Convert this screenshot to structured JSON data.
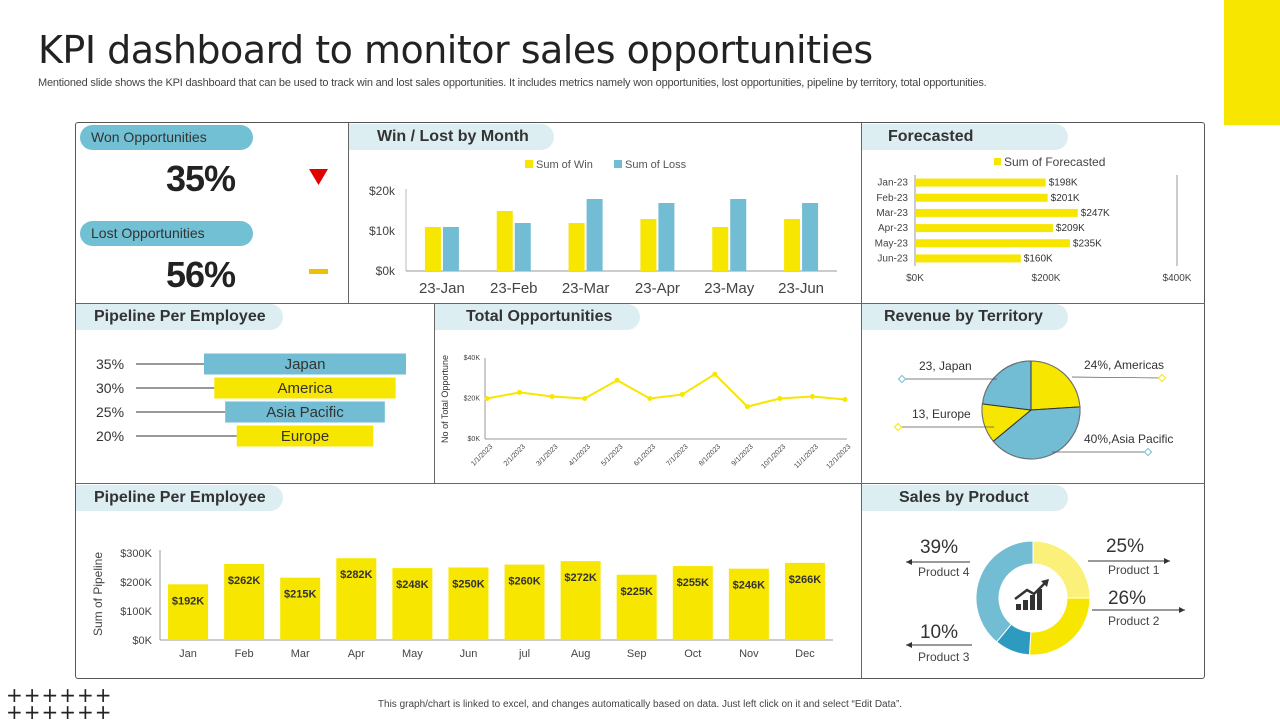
{
  "title": "KPI dashboard to monitor sales opportunities",
  "subtitle": "Mentioned slide shows the KPI dashboard that can be used to track win and lost sales opportunities. It includes metrics namely won opportunities, lost opportunities, pipeline by territory,  total opportunities.",
  "footer": "This graph/chart is linked to excel, and changes automatically based on data. Just left click on it and select “Edit Data”.",
  "decor": {
    "plus_row": "++++++"
  },
  "colors": {
    "yellow": "#f7e600",
    "blue": "#72bcd4",
    "dark_blue": "#2d9bbf",
    "light_yellow": "#fbf07a",
    "tab_bg": "#ddeef3",
    "accent_corner": "#f7e600"
  },
  "won": {
    "label": "Won Opportunities",
    "value": "35%",
    "indicator": "down-triangle",
    "indicator_color": "#e00000"
  },
  "lost": {
    "label": "Lost Opportunities",
    "value": "56%",
    "indicator": "dash",
    "indicator_color": "#f0c000"
  },
  "panels": {
    "win_lost": "Win / Lost by Month",
    "forecasted": "Forecasted",
    "pipeline_emp": "Pipeline Per Employee",
    "total_opp": "Total Opportunities",
    "revenue_territory": "Revenue by Territory",
    "pipeline_emp2": "Pipeline Per Employee",
    "sales_product": "Sales by Product"
  },
  "chart_data": [
    {
      "id": "win_lost",
      "type": "bar",
      "categories": [
        "23-Jan",
        "23-Feb",
        "23-Mar",
        "23-Apr",
        "23-May",
        "23-Jun"
      ],
      "series": [
        {
          "name": "Sum of Win",
          "values": [
            11,
            15,
            12,
            13,
            11,
            13
          ]
        },
        {
          "name": "Sum of Loss",
          "values": [
            11,
            12,
            18,
            17,
            18,
            17
          ]
        }
      ],
      "yticks": [
        "$0k",
        "$10k",
        "$20k"
      ],
      "ylim": [
        0,
        20
      ]
    },
    {
      "id": "forecasted",
      "type": "bar",
      "orientation": "horizontal",
      "legend": "Sum of Forecasted",
      "categories": [
        "Jan-23",
        "Feb-23",
        "Mar-23",
        "Apr-23",
        "May-23",
        "Jun-23"
      ],
      "values": [
        198,
        201,
        247,
        209,
        235,
        160
      ],
      "labels": [
        "$198K",
        "$201K",
        "$247K",
        "$209K",
        "$235K",
        "$160K"
      ],
      "xticks": [
        "$0K",
        "$200K",
        "$400K"
      ],
      "xlim": [
        0,
        400
      ]
    },
    {
      "id": "pipeline_funnel",
      "type": "bar",
      "orientation": "horizontal",
      "categories": [
        "Japan",
        "America",
        "Asia Pacific",
        "Europe"
      ],
      "percent_labels": [
        "35%",
        "30%",
        "25%",
        "20%"
      ],
      "values": [
        35,
        30,
        25,
        20
      ]
    },
    {
      "id": "total_opp",
      "type": "line",
      "ylabel": "No of Total Opportune",
      "x": [
        "1/1/2023",
        "2/1/2023",
        "3/1/2023",
        "4/1/2023",
        "5/1/2023",
        "6/1/2023",
        "7/1/2023",
        "8/1/2023",
        "9/1/2023",
        "10/1/2023",
        "11/1/2023",
        "12/1/2023"
      ],
      "values": [
        20,
        23,
        21,
        20,
        29,
        20,
        22,
        32,
        16,
        20,
        21,
        19.5
      ],
      "yticks": [
        "$0K",
        "$20K",
        "$40K"
      ],
      "ylim": [
        0,
        40
      ]
    },
    {
      "id": "revenue_territory",
      "type": "pie",
      "slices": [
        {
          "label": "24%, Americas",
          "value": 24,
          "color": "#f7e600"
        },
        {
          "label": "40%,Asia Pacific",
          "value": 40,
          "color": "#72bcd4"
        },
        {
          "label": "13, Europe",
          "value": 13,
          "color": "#f7e600"
        },
        {
          "label": "23, Japan",
          "value": 23,
          "color": "#72bcd4"
        }
      ]
    },
    {
      "id": "pipeline_monthly",
      "type": "bar",
      "ylabel": "Sum of Pipeline",
      "categories": [
        "Jan",
        "Feb",
        "Mar",
        "Apr",
        "May",
        "Jun",
        "jul",
        "Aug",
        "Sep",
        "Oct",
        "Nov",
        "Dec"
      ],
      "values": [
        192,
        262,
        215,
        282,
        248,
        250,
        260,
        272,
        225,
        255,
        246,
        266
      ],
      "labels": [
        "$192K",
        "$262K",
        "$215K",
        "$282K",
        "$248K",
        "$250K",
        "$260K",
        "$272K",
        "$225K",
        "$255K",
        "$246K",
        "$266K"
      ],
      "yticks": [
        "$0K",
        "$100K",
        "$200K",
        "$300K"
      ],
      "ylim": [
        0,
        300
      ]
    },
    {
      "id": "sales_product",
      "type": "pie",
      "donut": true,
      "slices": [
        {
          "label": "Product 1",
          "pct": "25%",
          "value": 25,
          "color": "#fbf07a"
        },
        {
          "label": "Product 2",
          "pct": "26%",
          "value": 26,
          "color": "#f7e600"
        },
        {
          "label": "Product 3",
          "pct": "10%",
          "value": 10,
          "color": "#2d9bbf"
        },
        {
          "label": "Product 4",
          "pct": "39%",
          "value": 39,
          "color": "#72bcd4"
        }
      ]
    }
  ]
}
